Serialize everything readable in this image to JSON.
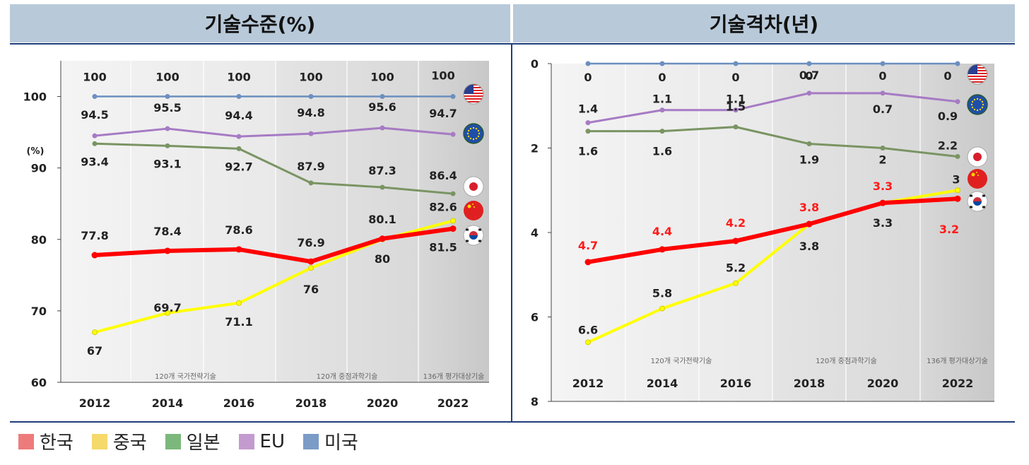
{
  "headers": {
    "left": "기술수준(%)",
    "right": "기술격차(년)"
  },
  "unit_label": "(%)",
  "legend": [
    {
      "label": "한국",
      "color": "#ee7b7b"
    },
    {
      "label": "중국",
      "color": "#f5d96b"
    },
    {
      "label": "일본",
      "color": "#7cb87c"
    },
    {
      "label": "EU",
      "color": "#c49bcf"
    },
    {
      "label": "미국",
      "color": "#7a9cc6"
    }
  ],
  "colors": {
    "korea": "#ff0000",
    "china": "#ffff00",
    "japan": "#7a9463",
    "eu": "#a67bc4",
    "usa": "#6b8fbf"
  },
  "chart_data": [
    {
      "type": "line",
      "title": "기술수준(%)",
      "ylabel": "(%)",
      "x": [
        2012,
        2014,
        2016,
        2018,
        2020,
        2022
      ],
      "ylim": [
        60,
        105
      ],
      "yticks": [
        60,
        70,
        80,
        90,
        100
      ],
      "grid": true,
      "period_notes": [
        "120개 국가전략기술",
        "120개 중점과학기술",
        "136개 평가대상기술"
      ],
      "series": [
        {
          "key": "usa",
          "name": "미국",
          "values": [
            100,
            100,
            100,
            100,
            100,
            100
          ]
        },
        {
          "key": "eu",
          "name": "EU",
          "values": [
            94.5,
            95.5,
            94.4,
            94.8,
            95.6,
            94.7
          ]
        },
        {
          "key": "japan",
          "name": "일본",
          "values": [
            93.4,
            93.1,
            92.7,
            87.9,
            87.3,
            86.4
          ]
        },
        {
          "key": "korea",
          "name": "한국",
          "values": [
            77.8,
            78.4,
            78.6,
            76.9,
            80.1,
            81.5
          ]
        },
        {
          "key": "china",
          "name": "중국",
          "values": [
            67,
            69.7,
            71.1,
            76,
            80,
            82.6
          ]
        }
      ]
    },
    {
      "type": "line",
      "title": "기술격차(년)",
      "x": [
        2012,
        2014,
        2016,
        2018,
        2020,
        2022
      ],
      "ylim": [
        0,
        8
      ],
      "y_inverted": true,
      "yticks": [
        0,
        2,
        4,
        6,
        8
      ],
      "grid": true,
      "period_notes": [
        "120개 국가전략기술",
        "120개 중점과학기술",
        "136개 평가대상기술"
      ],
      "series": [
        {
          "key": "usa",
          "name": "미국",
          "values": [
            0,
            0,
            0,
            0,
            0,
            0
          ]
        },
        {
          "key": "eu",
          "name": "EU",
          "values": [
            1.4,
            1.1,
            1.1,
            0.7,
            0.7,
            0.9
          ]
        },
        {
          "key": "japan",
          "name": "일본",
          "values": [
            1.6,
            1.6,
            1.5,
            1.9,
            2,
            2.2
          ]
        },
        {
          "key": "korea",
          "name": "한국",
          "values": [
            4.7,
            4.4,
            4.2,
            3.8,
            3.3,
            3.2
          ]
        },
        {
          "key": "china",
          "name": "중국",
          "values": [
            6.6,
            5.8,
            5.2,
            3.8,
            3.3,
            3
          ]
        }
      ]
    }
  ]
}
